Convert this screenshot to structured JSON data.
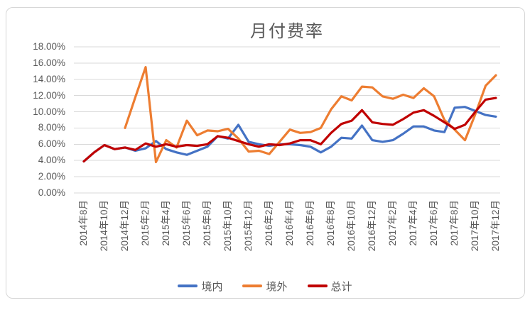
{
  "chart_data": {
    "type": "line",
    "title": "月付费率",
    "x_labels": [
      "2014年8月",
      "2014年10月",
      "2014年12月",
      "2015年2月",
      "2015年4月",
      "2015年6月",
      "2015年8月",
      "2015年10月",
      "2015年12月",
      "2016年2月",
      "2016年4月",
      "2016年6月",
      "2016年8月",
      "2016年10月",
      "2016年12月",
      "2017年2月",
      "2017年4月",
      "2017年6月",
      "2017年8月",
      "2017年10月",
      "2017年12月"
    ],
    "x_label_note": "labels shown every 2 months; series contain monthly points 2014-08 .. 2017-12",
    "y_ticks": [
      "18.00%",
      "16.00%",
      "14.00%",
      "12.00%",
      "10.00%",
      "8.00%",
      "6.00%",
      "4.00%",
      "2.00%",
      "0.00%"
    ],
    "ylim": [
      0,
      18
    ],
    "y_step": 2,
    "grid": true,
    "legend_position": "bottom",
    "colors": {
      "domestic": "#4472C4",
      "overseas": "#ED7D31",
      "total": "#C00000",
      "gridline": "#D9D9D9",
      "text": "#595959"
    },
    "series": [
      {
        "name": "境内",
        "color": "#4472C4",
        "values": [
          3.9,
          5.0,
          5.9,
          5.4,
          5.6,
          5.2,
          5.5,
          6.4,
          5.4,
          5.0,
          4.7,
          5.2,
          5.7,
          7.0,
          6.7,
          8.4,
          6.3,
          6.0,
          5.8,
          6.0,
          6.0,
          5.9,
          5.7,
          5.0,
          5.7,
          6.8,
          6.7,
          8.3,
          6.5,
          6.3,
          6.5,
          7.3,
          8.2,
          8.2,
          7.7,
          7.5,
          10.5,
          10.6,
          10.1,
          9.6,
          9.4
        ]
      },
      {
        "name": "境外",
        "color": "#ED7D31",
        "values": [
          null,
          null,
          null,
          null,
          8.0,
          11.8,
          15.5,
          3.8,
          6.5,
          5.6,
          8.9,
          7.1,
          7.7,
          7.6,
          7.9,
          6.7,
          5.1,
          5.2,
          4.8,
          6.3,
          7.8,
          7.4,
          7.5,
          8.0,
          10.3,
          11.9,
          11.4,
          13.1,
          13.0,
          11.9,
          11.6,
          12.1,
          11.7,
          12.9,
          11.9,
          9.0,
          7.8,
          6.5,
          9.7,
          13.2,
          14.5
        ]
      },
      {
        "name": "总计",
        "color": "#C00000",
        "values": [
          3.9,
          5.0,
          5.9,
          5.4,
          5.6,
          5.3,
          6.1,
          5.7,
          6.0,
          5.7,
          5.9,
          5.8,
          6.0,
          7.0,
          6.8,
          6.4,
          6.0,
          5.7,
          6.0,
          5.9,
          6.1,
          6.5,
          6.5,
          6.0,
          7.4,
          8.5,
          8.9,
          10.2,
          8.7,
          8.5,
          8.4,
          9.1,
          9.9,
          10.2,
          9.5,
          8.7,
          7.9,
          8.4,
          10.0,
          11.5,
          11.7
        ]
      }
    ]
  }
}
